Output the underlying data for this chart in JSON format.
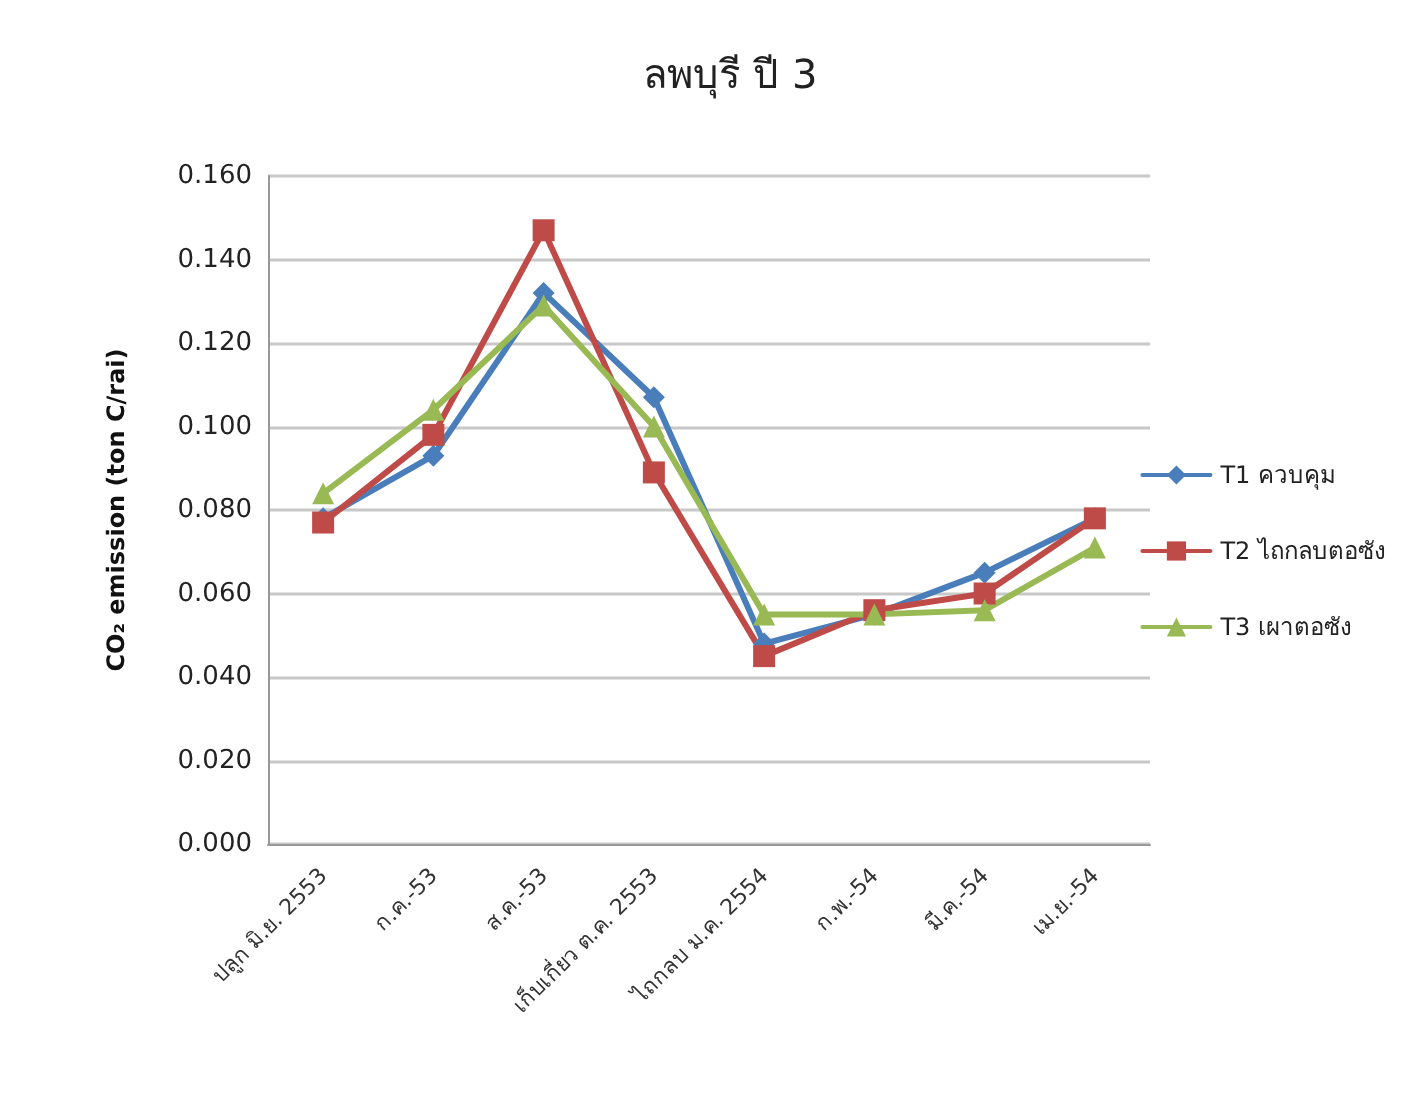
{
  "chart_data": {
    "type": "line",
    "title": "ลพบุรี ปี 3",
    "ylabel": "CO₂ emission (ton C/rai)",
    "categories": [
      "ปลูก มิ.ย. 2553",
      "ก.ค.-53",
      "ส.ค.-53",
      "เก็บเกี่ยว ต.ค. 2553",
      "ไถกลบ ม.ค. 2554",
      "ก.พ.-54",
      "มี.ค.-54",
      "เม.ย.-54"
    ],
    "series": [
      {
        "name": "T1 ควบคุม",
        "color": "#4a7ebb",
        "marker": "diamond",
        "values": [
          0.078,
          0.093,
          0.132,
          0.107,
          0.048,
          0.055,
          0.065,
          0.078
        ]
      },
      {
        "name": "T2 ไถกลบตอซัง",
        "color": "#be4b48",
        "marker": "square",
        "values": [
          0.077,
          0.098,
          0.147,
          0.089,
          0.045,
          0.056,
          0.06,
          0.078
        ]
      },
      {
        "name": "T3 เผาตอซัง",
        "color": "#98b954",
        "marker": "triangle",
        "values": [
          0.084,
          0.104,
          0.129,
          0.1,
          0.055,
          0.055,
          0.056,
          0.071
        ]
      }
    ],
    "ylim": [
      0,
      0.16
    ],
    "yticks": [
      {
        "value": 0,
        "label": "0.000"
      },
      {
        "value": 0.02,
        "label": "0.020"
      },
      {
        "value": 0.04,
        "label": "0.040"
      },
      {
        "value": 0.06,
        "label": "0.060"
      },
      {
        "value": 0.08,
        "label": "0.080"
      },
      {
        "value": 0.1,
        "label": "0.100"
      },
      {
        "value": 0.12,
        "label": "0.120"
      },
      {
        "value": 0.14,
        "label": "0.140"
      },
      {
        "value": 0.16,
        "label": "0.160"
      }
    ],
    "grid": "y",
    "legend": "right",
    "line_style": "solid"
  }
}
